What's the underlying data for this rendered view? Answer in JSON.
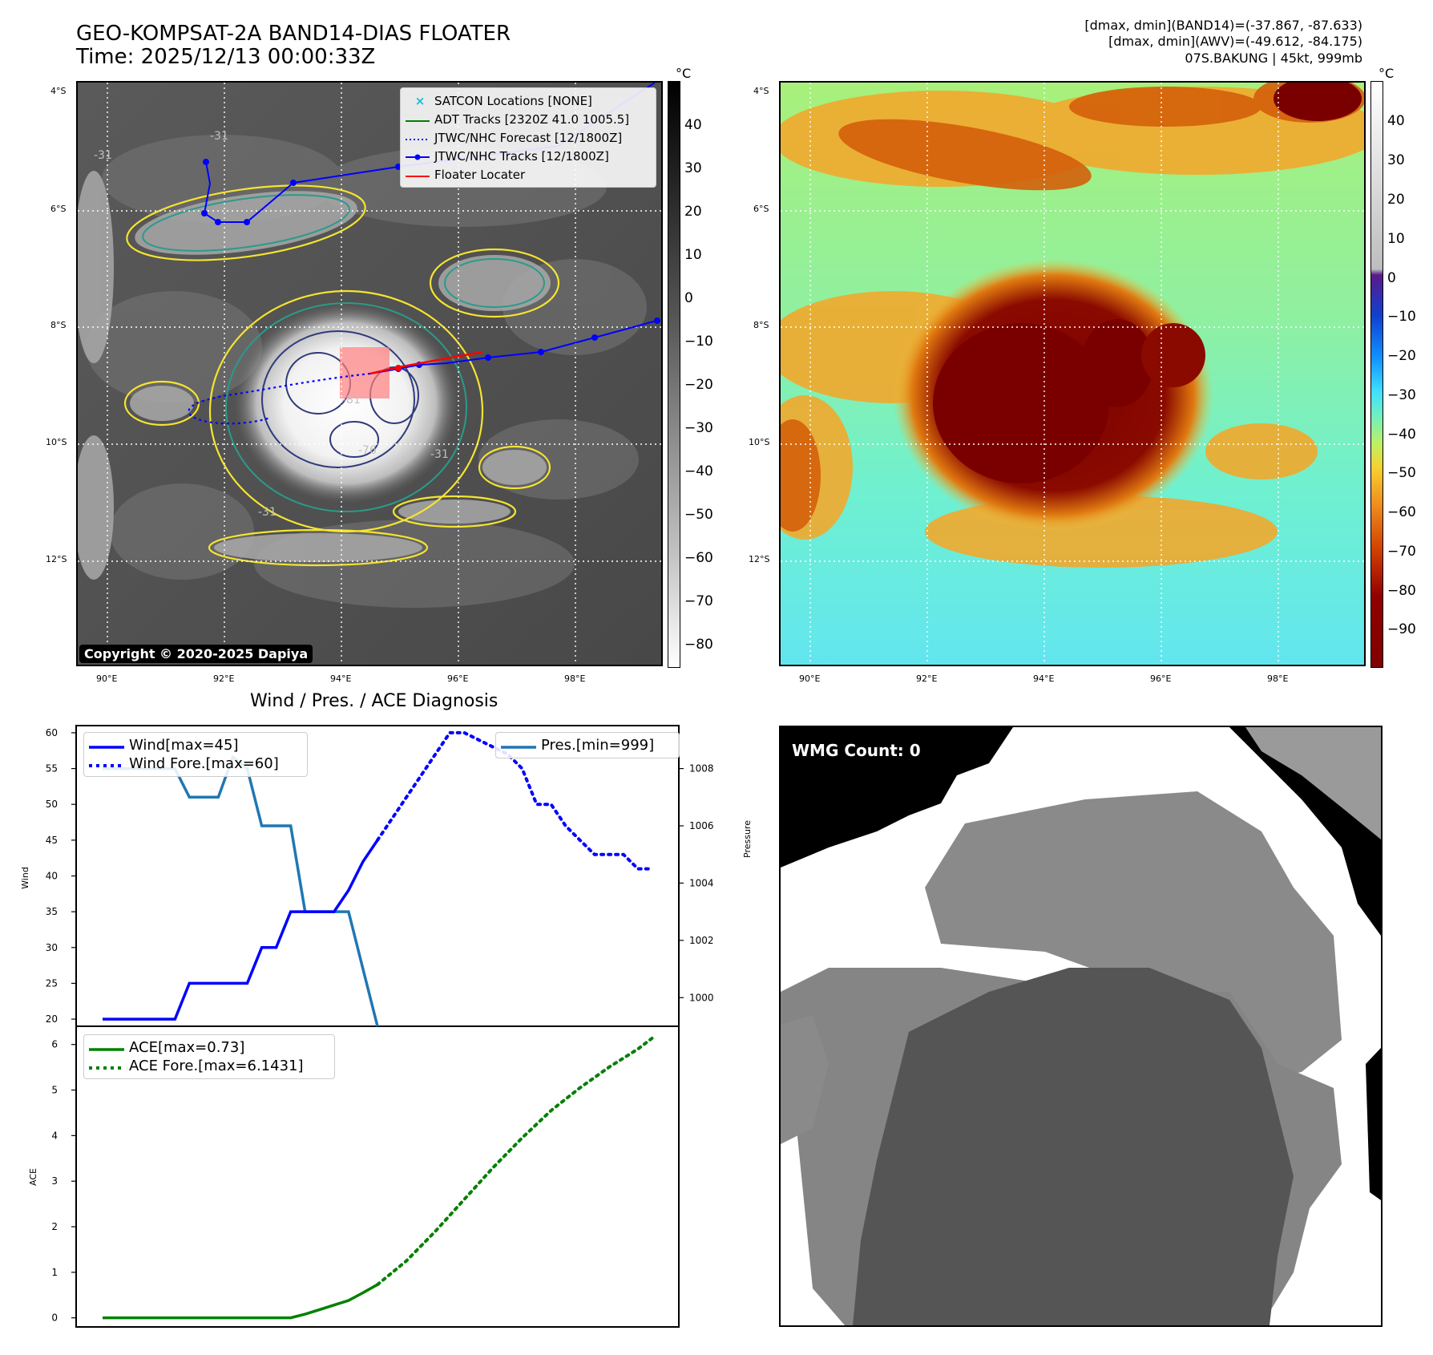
{
  "header": {
    "title_line1": "GEO-KOMPSAT-2A BAND14-DIAS FLOATER",
    "title_line2": "Time: 2025/12/13 00:00:33Z",
    "right_line1": "[dmax, dmin](BAND14)=(-37.867, -87.633)",
    "right_line2": "[dmax, dmin](AWV)=(-49.612, -84.175)",
    "right_line3": "07S.BAKUNG | 45kt, 999mb"
  },
  "map": {
    "lat_labels": [
      "4°S",
      "6°S",
      "8°S",
      "10°S",
      "12°S"
    ],
    "lon_labels": [
      "90°E",
      "92°E",
      "94°E",
      "96°E",
      "98°E"
    ],
    "copyright": "Copyright © 2020-2025 Dapiya",
    "contour_labels": [
      "-31",
      "-31",
      "-31",
      "-64",
      "-76",
      "-81",
      "-31",
      "-31"
    ],
    "legend": [
      {
        "label": "SATCON Locations [NONE]",
        "color": "#17becf",
        "style": "x"
      },
      {
        "label": "ADT Tracks [2320Z 41.0 1005.5]",
        "color": "#008000",
        "style": "solid"
      },
      {
        "label": "JTWC/NHC Forecast [12/1800Z]",
        "color": "#0000ff",
        "style": "dotted"
      },
      {
        "label": "JTWC/NHC Tracks [12/1800Z]",
        "color": "#0000ff",
        "style": "dot-line"
      },
      {
        "label": "Floater Locater",
        "color": "#ff0000",
        "style": "solid"
      }
    ]
  },
  "colorbar_left": {
    "unit": "°C",
    "ticks": [
      "40",
      "30",
      "20",
      "10",
      "0",
      "−10",
      "−20",
      "−30",
      "−40",
      "−50",
      "−60",
      "−70",
      "−80"
    ]
  },
  "colorbar_right": {
    "unit": "°C",
    "ticks": [
      "40",
      "30",
      "20",
      "10",
      "0",
      "−10",
      "−20",
      "−30",
      "−40",
      "−50",
      "−60",
      "−70",
      "−80",
      "−90"
    ]
  },
  "diagnosis": {
    "title": "Wind / Pres. / ACE Diagnosis",
    "wind_ylabel": "Wind",
    "pres_ylabel": "Pressure",
    "ace_ylabel": "ACE",
    "legend_wind": "Wind[max=45]",
    "legend_wind_fore": "Wind Fore.[max=60]",
    "legend_pres": "Pres.[min=999]",
    "legend_ace": "ACE[max=0.73]",
    "legend_ace_fore": "ACE Fore.[max=6.1431]"
  },
  "wmg": {
    "label": "WMG Count: 0"
  },
  "colors": {
    "wind": "#0000ff",
    "pressure": "#1f77b4",
    "ace": "#008000",
    "track": "#0000ff",
    "floater": "#ff0000"
  },
  "chart_data": [
    {
      "type": "line",
      "name": "wind",
      "ylabel": "Wind",
      "ylim": [
        19,
        61
      ],
      "yticks": [
        20,
        25,
        30,
        35,
        40,
        45,
        50,
        55,
        60
      ],
      "series": [
        {
          "name": "Wind[max=45]",
          "style": "solid",
          "x": [
            0,
            1,
            2,
            3,
            4,
            5,
            6,
            7,
            8,
            9,
            10,
            11,
            12,
            13,
            14,
            15,
            16,
            17,
            18,
            19
          ],
          "values": [
            20,
            20,
            20,
            20,
            20,
            20,
            25,
            25,
            25,
            25,
            25,
            30,
            30,
            35,
            35,
            35,
            35,
            38,
            42,
            45
          ]
        },
        {
          "name": "Wind Fore.[max=60]",
          "style": "dotted",
          "x": [
            19,
            20,
            21,
            22,
            23,
            24,
            25,
            26,
            27,
            28,
            29,
            30,
            31,
            32,
            33,
            34,
            35,
            36,
            37,
            38
          ],
          "values": [
            45,
            48,
            51,
            54,
            57,
            60,
            60,
            59,
            58,
            57,
            55,
            50,
            50,
            47,
            45,
            43,
            43,
            43,
            41,
            41
          ]
        }
      ]
    },
    {
      "type": "line",
      "name": "pressure",
      "ylabel": "Pressure",
      "ylim": [
        999,
        1009.5
      ],
      "yticks": [
        1000,
        1002,
        1004,
        1006,
        1008
      ],
      "series": [
        {
          "name": "Pres.[min=999]",
          "style": "solid",
          "x": [
            0,
            1,
            2,
            3,
            4,
            5,
            6,
            7,
            8,
            9,
            10,
            11,
            12,
            13,
            14,
            15,
            16,
            17,
            18,
            19
          ],
          "values": [
            1008,
            1008,
            1008,
            1008,
            1008,
            1008,
            1007,
            1007,
            1007,
            1008.4,
            1008,
            1006,
            1006,
            1006,
            1003,
            1003,
            1003,
            1003,
            1001,
            999
          ]
        }
      ]
    },
    {
      "type": "line",
      "name": "ace",
      "ylabel": "ACE",
      "ylim": [
        -0.2,
        6.4
      ],
      "yticks": [
        0,
        1,
        2,
        3,
        4,
        5,
        6
      ],
      "series": [
        {
          "name": "ACE[max=0.73]",
          "style": "solid",
          "x": [
            0,
            3,
            6,
            9,
            12,
            13,
            14,
            15,
            16,
            17,
            18,
            19
          ],
          "values": [
            0,
            0,
            0,
            0,
            0,
            0,
            0.08,
            0.18,
            0.28,
            0.38,
            0.55,
            0.73
          ]
        },
        {
          "name": "ACE Fore.[max=6.1431]",
          "style": "dotted",
          "x": [
            19,
            21,
            23,
            25,
            27,
            29,
            31,
            33,
            35,
            37,
            38
          ],
          "values": [
            0.73,
            1.25,
            1.9,
            2.6,
            3.3,
            3.95,
            4.55,
            5.05,
            5.5,
            5.9,
            6.1431
          ]
        }
      ]
    }
  ]
}
